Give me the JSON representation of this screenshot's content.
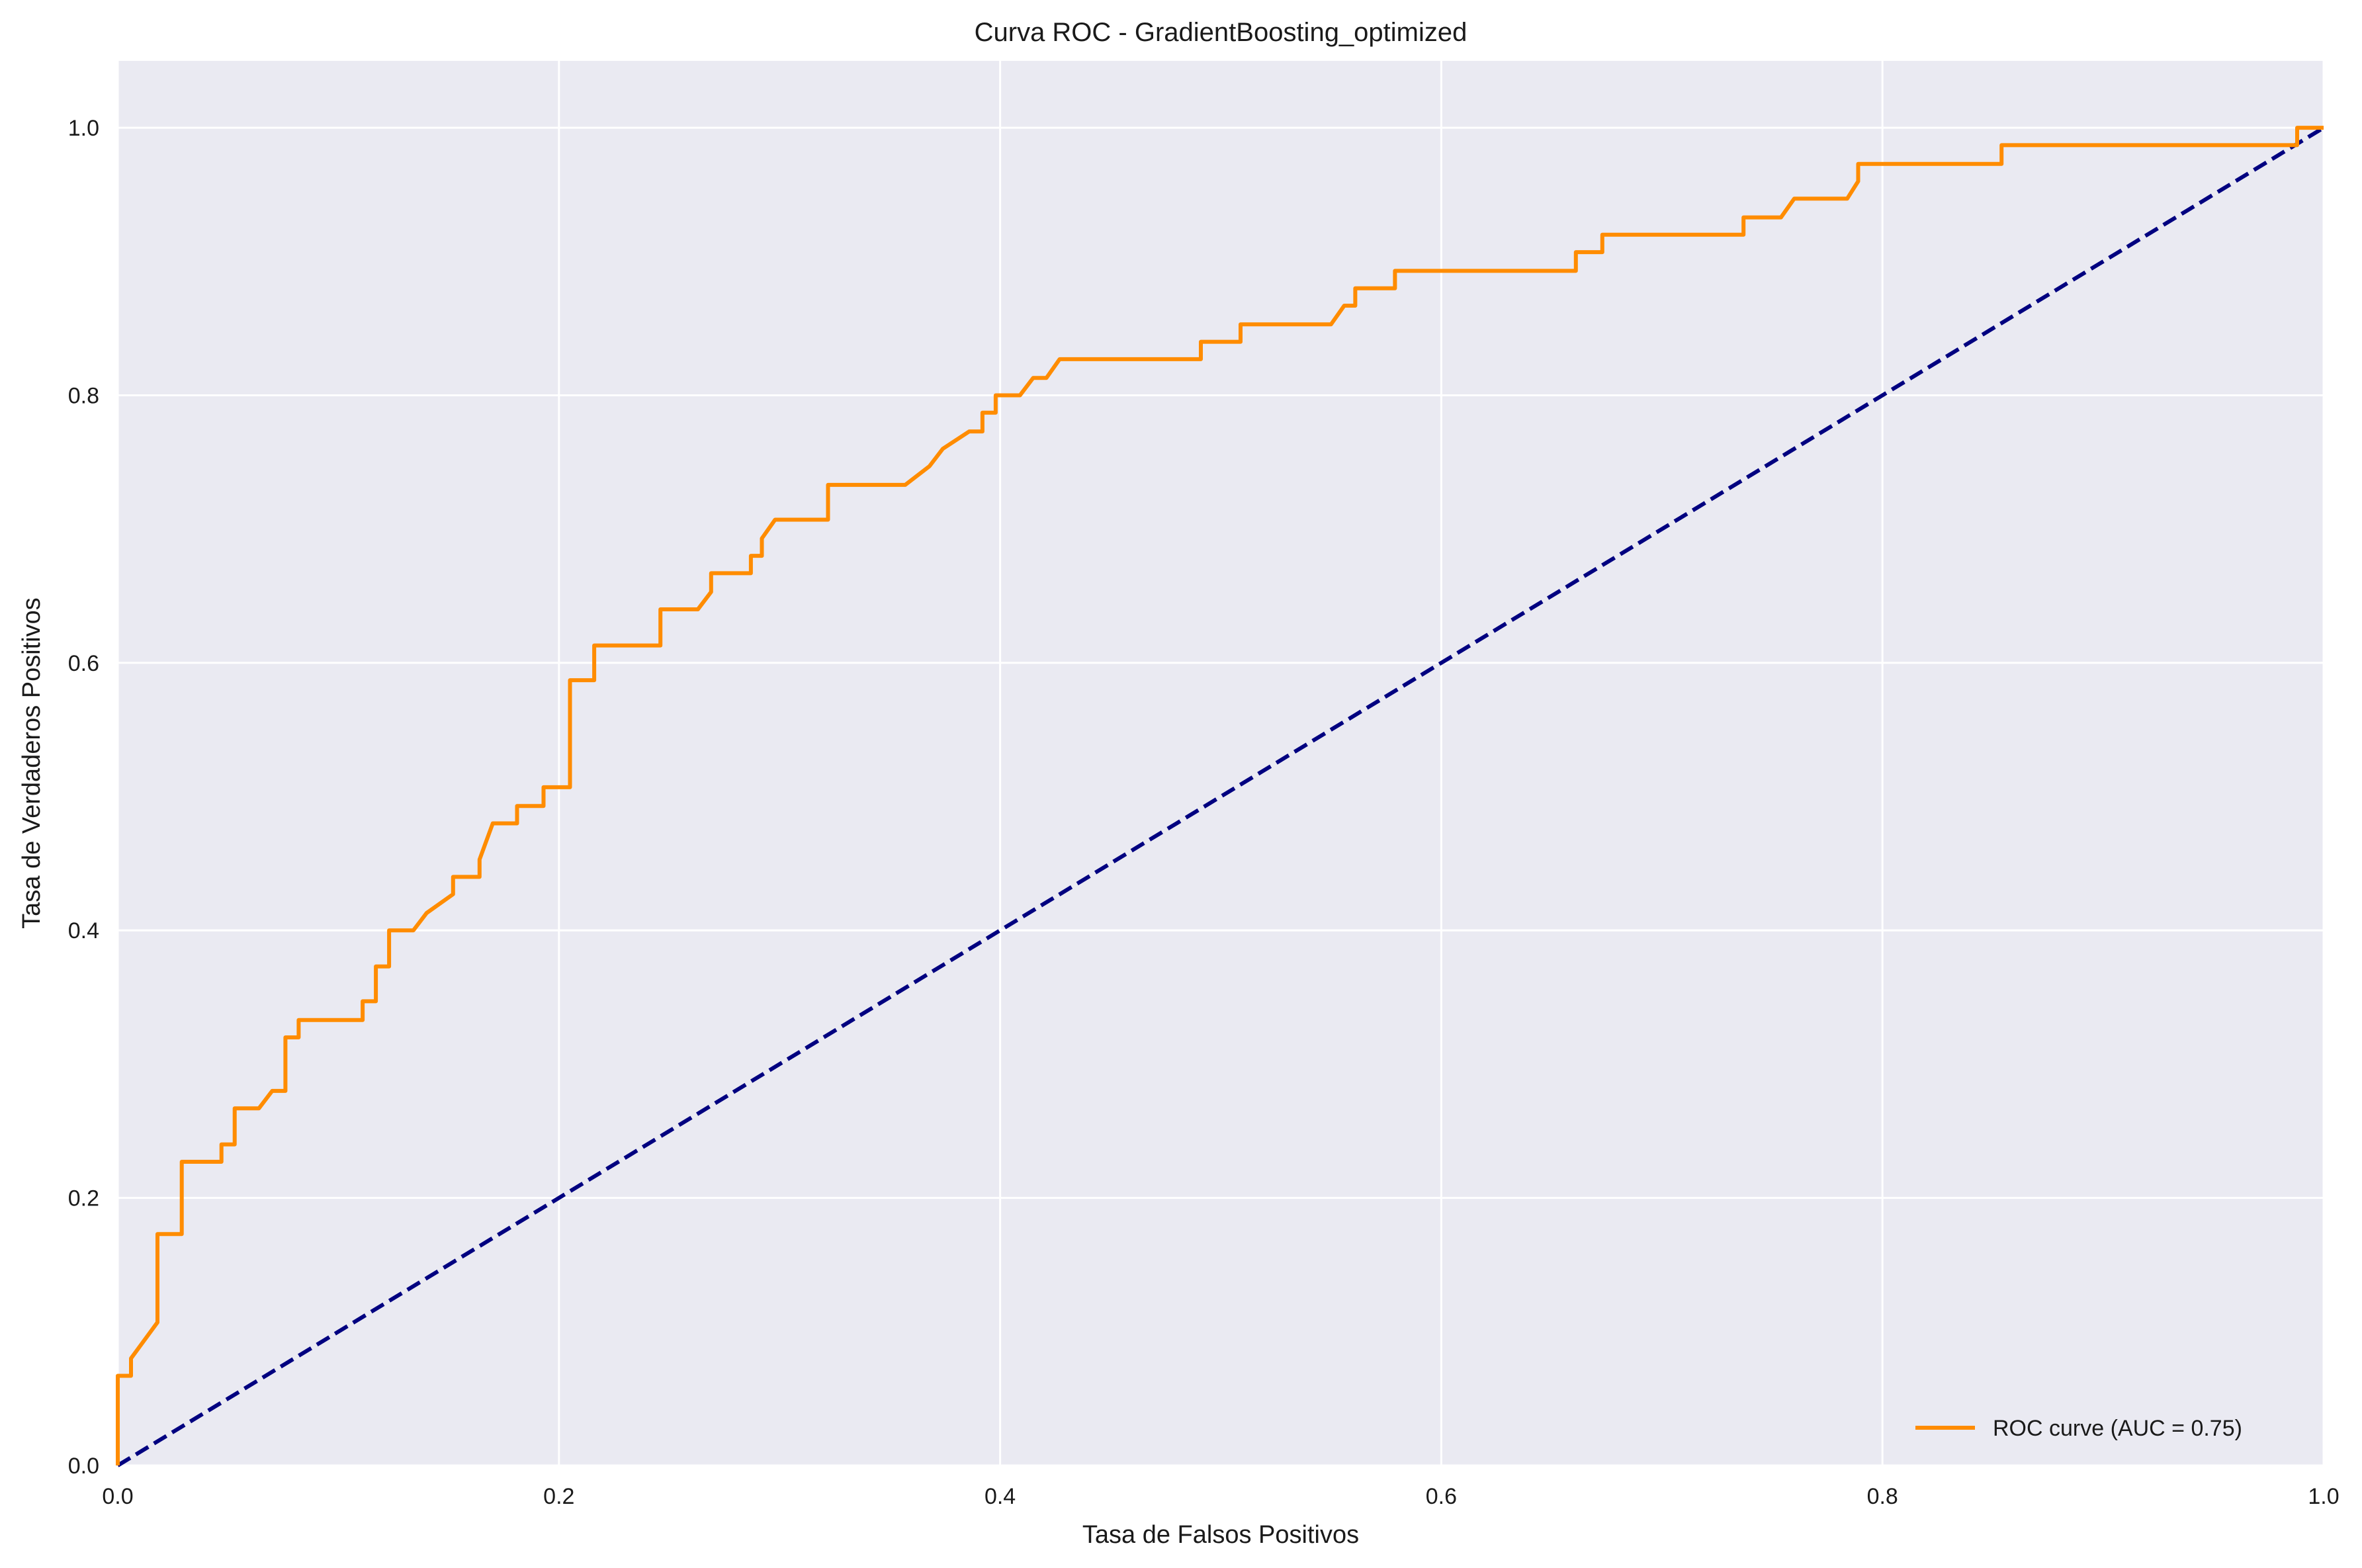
{
  "chart_data": {
    "type": "line",
    "title": "Curva ROC - GradientBoosting_optimized",
    "xlabel": "Tasa de Falsos Positivos",
    "ylabel": "Tasa de Verdaderos Positivos",
    "xlim": [
      0.0,
      1.0
    ],
    "ylim": [
      0.0,
      1.05
    ],
    "grid": true,
    "legend_position": "lower-right",
    "x_ticks": [
      "0.0",
      "0.2",
      "0.4",
      "0.6",
      "0.8",
      "1.0"
    ],
    "y_ticks": [
      "0.0",
      "0.2",
      "0.4",
      "0.6",
      "0.8",
      "1.0"
    ],
    "series": [
      {
        "name": "ROC curve (AUC = 0.75)",
        "color": "#ff8c00",
        "style": "solid",
        "x": [
          0.0,
          0.0,
          0.006,
          0.006,
          0.018,
          0.018,
          0.029,
          0.029,
          0.047,
          0.047,
          0.053,
          0.053,
          0.064,
          0.07,
          0.076,
          0.076,
          0.082,
          0.082,
          0.111,
          0.111,
          0.117,
          0.117,
          0.123,
          0.123,
          0.134,
          0.14,
          0.152,
          0.152,
          0.164,
          0.164,
          0.17,
          0.181,
          0.181,
          0.193,
          0.193,
          0.205,
          0.205,
          0.216,
          0.216,
          0.246,
          0.246,
          0.263,
          0.269,
          0.269,
          0.287,
          0.287,
          0.292,
          0.292,
          0.298,
          0.322,
          0.322,
          0.357,
          0.368,
          0.374,
          0.386,
          0.392,
          0.392,
          0.398,
          0.398,
          0.409,
          0.415,
          0.421,
          0.427,
          0.491,
          0.491,
          0.509,
          0.509,
          0.55,
          0.556,
          0.561,
          0.561,
          0.579,
          0.579,
          0.661,
          0.661,
          0.673,
          0.673,
          0.737,
          0.737,
          0.754,
          0.76,
          0.784,
          0.789,
          0.789,
          0.854,
          0.854,
          0.988,
          0.988,
          1.0
        ],
        "y": [
          0.0,
          0.067,
          0.067,
          0.08,
          0.107,
          0.173,
          0.173,
          0.227,
          0.227,
          0.24,
          0.24,
          0.267,
          0.267,
          0.28,
          0.28,
          0.32,
          0.32,
          0.333,
          0.333,
          0.347,
          0.347,
          0.373,
          0.373,
          0.4,
          0.4,
          0.413,
          0.427,
          0.44,
          0.44,
          0.453,
          0.48,
          0.48,
          0.493,
          0.493,
          0.507,
          0.507,
          0.587,
          0.587,
          0.613,
          0.613,
          0.64,
          0.64,
          0.653,
          0.667,
          0.667,
          0.68,
          0.68,
          0.693,
          0.707,
          0.707,
          0.733,
          0.733,
          0.747,
          0.76,
          0.773,
          0.773,
          0.787,
          0.787,
          0.8,
          0.8,
          0.813,
          0.813,
          0.827,
          0.827,
          0.84,
          0.84,
          0.853,
          0.853,
          0.867,
          0.867,
          0.88,
          0.88,
          0.893,
          0.893,
          0.907,
          0.907,
          0.92,
          0.92,
          0.933,
          0.933,
          0.947,
          0.947,
          0.96,
          0.973,
          0.973,
          0.987,
          0.987,
          1.0,
          1.0
        ]
      },
      {
        "name": "",
        "color": "#000080",
        "style": "dashed",
        "x": [
          0.0,
          1.0
        ],
        "y": [
          0.0,
          1.0
        ]
      }
    ]
  },
  "colors": {
    "plot_background": "#eaeaf2",
    "grid": "#ffffff",
    "roc_line": "#ff8c00",
    "diagonal": "#000080"
  }
}
